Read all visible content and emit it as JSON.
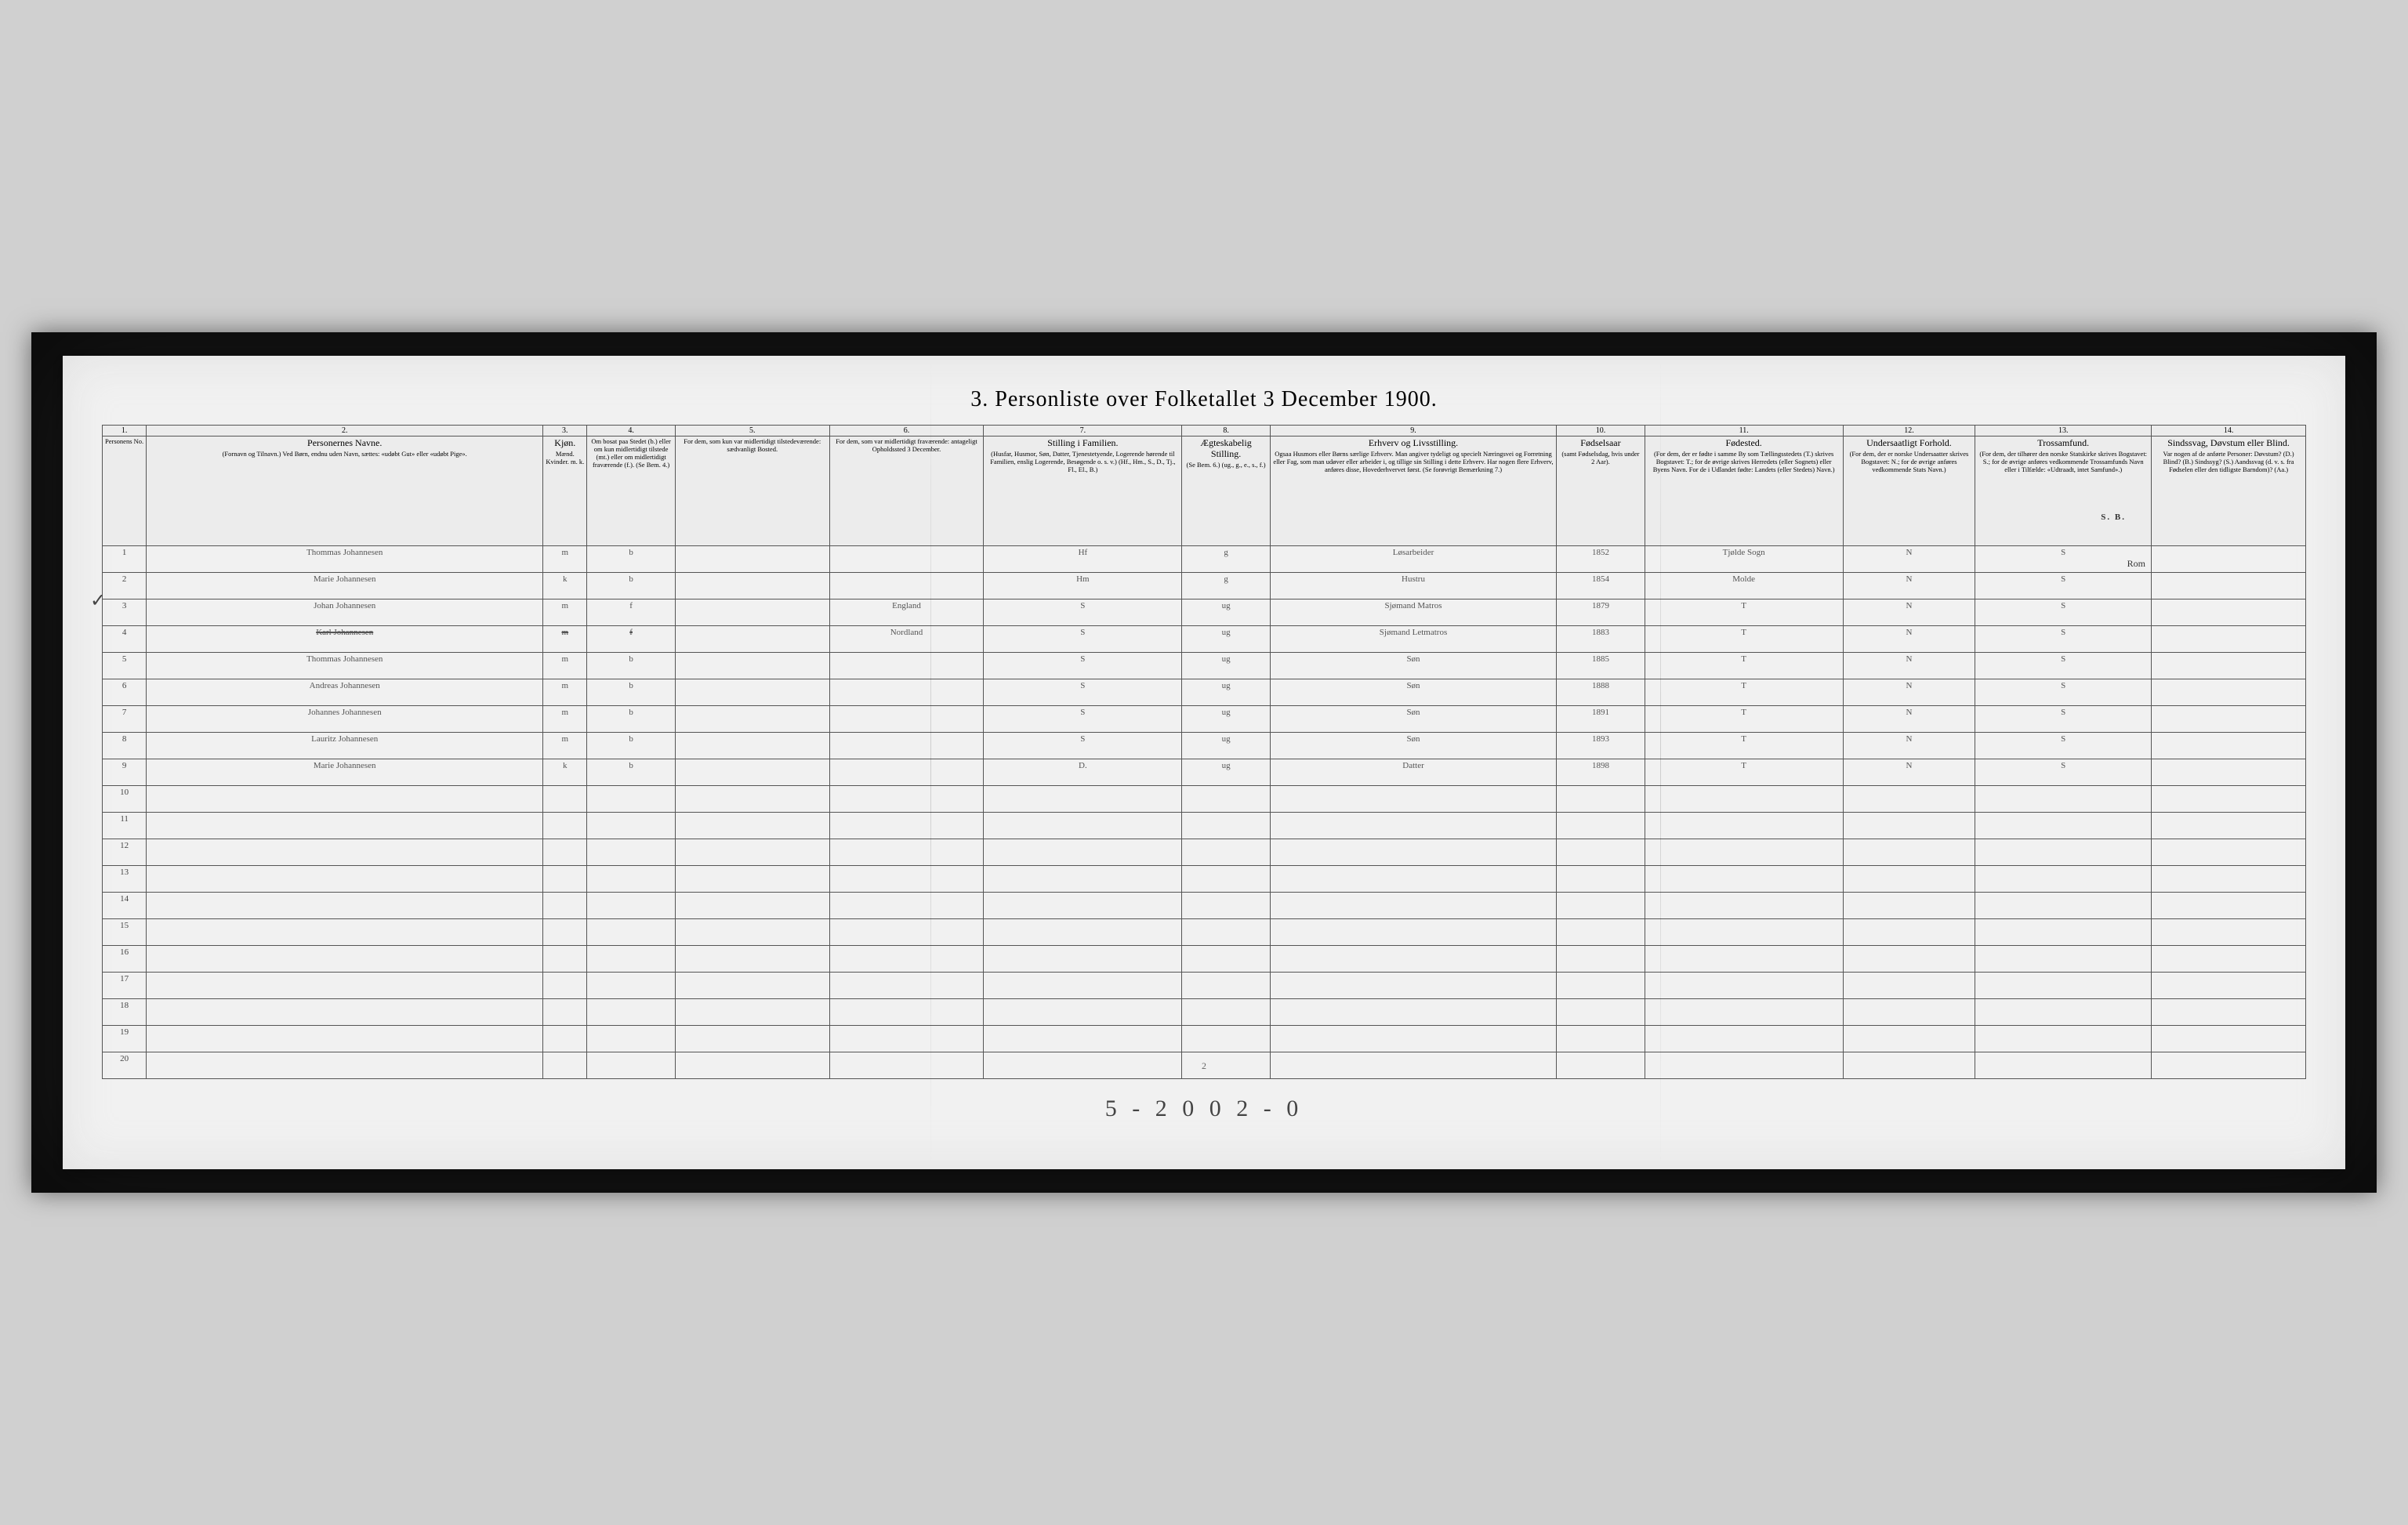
{
  "title": "3. Personliste over Folketallet 3 December 1900.",
  "page_number": "2",
  "tally": "5 - 2   0 0     2 - 0",
  "annotations": {
    "sb": "S. B.",
    "rom": "Rom",
    "check": "✓"
  },
  "colors": {
    "paper": "#f4f1e8",
    "ink": "#555555",
    "rule": "#555555",
    "background": "#1a1a1a",
    "outer": "#d0d0d0"
  },
  "column_numbers": [
    "1.",
    "2.",
    "3.",
    "4.",
    "5.",
    "6.",
    "7.",
    "8.",
    "9.",
    "10.",
    "11.",
    "12.",
    "13.",
    "14."
  ],
  "headers": [
    {
      "big": "",
      "small": "Personens No."
    },
    {
      "big": "Personernes Navne.",
      "small": "(Fornavn og Tilnavn.) Ved Børn, endnu uden Navn, sættes: «udøbt Gut» eller «udøbt Pige»."
    },
    {
      "big": "Kjøn.",
      "small": "Mænd.  Kvinder.  m.  k."
    },
    {
      "big": "",
      "small": "Om bosat paa Stedet (b.) eller om kun midlertidigt tilstede (mt.) eller om midlertidigt fraværende (f.). (Se Bem. 4.)"
    },
    {
      "big": "",
      "small": "For dem, som kun var midlertidigt tilstedeværende: sædvanligt Bosted."
    },
    {
      "big": "",
      "small": "For dem, som var midlertidigt fraværende: antageligt Opholdssted 3 December."
    },
    {
      "big": "Stilling i Familien.",
      "small": "(Husfar, Husmor, Søn, Datter, Tjenestetyende, Logerende hørende til Familien, enslig Logerende, Besøgende o. s. v.) (Hf., Hm., S., D., Tj., Fl., El., B.)"
    },
    {
      "big": "Ægteskabelig Stilling.",
      "small": "(Se Bem. 6.) (ug., g., e., s., f.)"
    },
    {
      "big": "Erhverv og Livsstilling.",
      "small": "Ogsaa Husmors eller Børns særlige Erhverv. Man angiver tydeligt og specielt Næringsvei og Forretning eller Fag, som man udøver eller arbeider i, og tillige sin Stilling i dette Erhverv. Har nogen flere Erhverv, anføres disse, Hovederhvervet først. (Se forøvrigt Bemærkning 7.)"
    },
    {
      "big": "Fødselsaar",
      "small": "(samt Fødselsdag, hvis under 2 Aar)."
    },
    {
      "big": "Fødested.",
      "small": "(For dem, der er fødte i samme By som Tællingsstedets (T.) skrives Bogstavet: T.; for de øvrige skrives Herredets (eller Sognets) eller Byens Navn. For de i Udlandet fødte: Landets (eller Stedets) Navn.)"
    },
    {
      "big": "Undersaatligt Forhold.",
      "small": "(For dem, der er norske Undersaatter skrives Bogstavet: N.; for de øvrige anføres vedkommende Stats Navn.)"
    },
    {
      "big": "Trossamfund.",
      "small": "(For dem, der tilhører den norske Statskirke skrives Bogstavet: S.; for de øvrige anføres vedkommende Trossamfunds Navn eller i Tilfælde: «Udtraadt, intet Samfund».)"
    },
    {
      "big": "Sindssvag, Døvstum eller Blind.",
      "small": "Var nogen af de anførte Personer: Døvstum? (D.) Blind? (B.) Sindssyg? (S.) Aandssvag (d. v. s. fra Fødselen eller den tidligste Barndom)? (Aa.)"
    }
  ],
  "rows": [
    {
      "no": "1",
      "name": "Thommas Johannesen",
      "sex": "m",
      "res": "b",
      "temp": "",
      "away": "",
      "fam": "Hf",
      "mar": "g",
      "occ": "Løsarbeider",
      "year": "1852",
      "birth": "Tjølde Sogn",
      "nat": "N",
      "rel": "S",
      "inf": ""
    },
    {
      "no": "2",
      "name": "Marie Johannesen",
      "sex": "k",
      "res": "b",
      "temp": "",
      "away": "",
      "fam": "Hm",
      "mar": "g",
      "occ": "Hustru",
      "year": "1854",
      "birth": "Molde",
      "nat": "N",
      "rel": "S",
      "inf": ""
    },
    {
      "no": "3",
      "name": "Johan Johannesen",
      "sex": "m",
      "res": "f",
      "temp": "",
      "away": "England",
      "fam": "S",
      "mar": "ug",
      "occ": "Sjømand Matros",
      "year": "1879",
      "birth": "T",
      "nat": "N",
      "rel": "S",
      "inf": ""
    },
    {
      "no": "4",
      "name": "Karl Johannesen",
      "sex": "m",
      "res": "f",
      "temp": "",
      "away": "Nordland",
      "fam": "S",
      "mar": "ug",
      "occ": "Sjømand Letmatros",
      "year": "1883",
      "birth": "T",
      "nat": "N",
      "rel": "S",
      "inf": "",
      "strike": true
    },
    {
      "no": "5",
      "name": "Thommas Johannesen",
      "sex": "m",
      "res": "b",
      "temp": "",
      "away": "",
      "fam": "S",
      "mar": "ug",
      "occ": "Søn",
      "year": "1885",
      "birth": "T",
      "nat": "N",
      "rel": "S",
      "inf": ""
    },
    {
      "no": "6",
      "name": "Andreas Johannesen",
      "sex": "m",
      "res": "b",
      "temp": "",
      "away": "",
      "fam": "S",
      "mar": "ug",
      "occ": "Søn",
      "year": "1888",
      "birth": "T",
      "nat": "N",
      "rel": "S",
      "inf": ""
    },
    {
      "no": "7",
      "name": "Johannes Johannesen",
      "sex": "m",
      "res": "b",
      "temp": "",
      "away": "",
      "fam": "S",
      "mar": "ug",
      "occ": "Søn",
      "year": "1891",
      "birth": "T",
      "nat": "N",
      "rel": "S",
      "inf": ""
    },
    {
      "no": "8",
      "name": "Lauritz Johannesen",
      "sex": "m",
      "res": "b",
      "temp": "",
      "away": "",
      "fam": "S",
      "mar": "ug",
      "occ": "Søn",
      "year": "1893",
      "birth": "T",
      "nat": "N",
      "rel": "S",
      "inf": ""
    },
    {
      "no": "9",
      "name": "Marie Johannesen",
      "sex": "k",
      "res": "b",
      "temp": "",
      "away": "",
      "fam": "D.",
      "mar": "ug",
      "occ": "Datter",
      "year": "1898",
      "birth": "T",
      "nat": "N",
      "rel": "S",
      "inf": ""
    }
  ],
  "empty_rows": [
    "10",
    "11",
    "12",
    "13",
    "14",
    "15",
    "16",
    "17",
    "18",
    "19",
    "20"
  ]
}
